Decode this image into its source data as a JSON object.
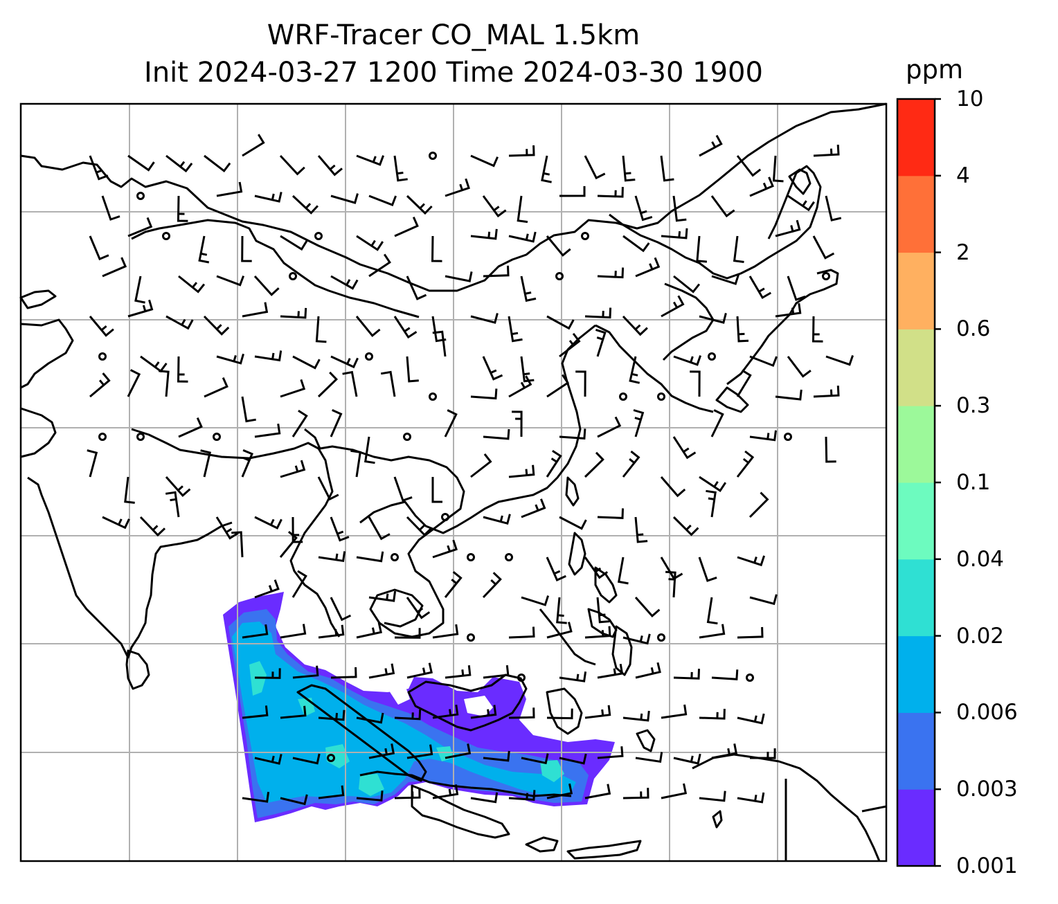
{
  "title": {
    "line1": "WRF-Tracer CO_MAL 1.5km",
    "line2": "Init 2024-03-27 1200 Time 2024-03-30 1900"
  },
  "colorbar": {
    "unit": "ppm",
    "levels": [
      "0.001",
      "0.003",
      "0.006",
      "0.02",
      "0.04",
      "0.1",
      "0.3",
      "0.6",
      "2",
      "4",
      "10"
    ],
    "colors": [
      "#6a2cff",
      "#3a73f0",
      "#00b0ec",
      "#2fe0d3",
      "#6dfbbf",
      "#9cf99a",
      "#d1e088",
      "#ffb060",
      "#ff7038",
      "#ff2a14"
    ]
  },
  "map": {
    "gridlines": "on",
    "tracer_plume_colors": [
      "#6a2cff",
      "#3a73f0",
      "#00b0ec",
      "#2fe0d3"
    ],
    "wind_barbs": "shown",
    "calm_markers": "shown"
  }
}
